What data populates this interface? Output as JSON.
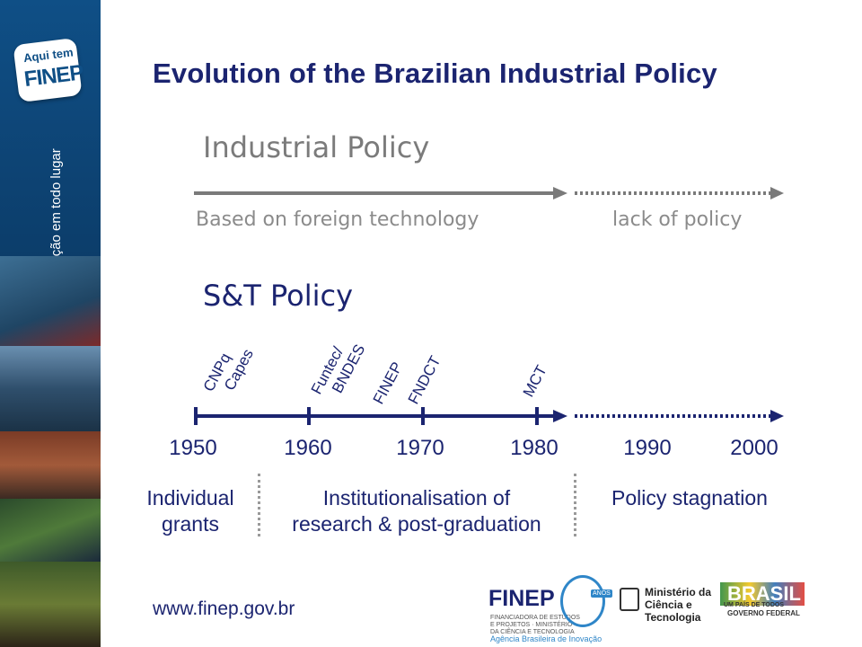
{
  "slide": {
    "title": "Evolution of the Brazilian Industrial Policy",
    "industrial_policy": {
      "heading": "Industrial Policy",
      "segments": [
        "Based on foreign technology",
        "lack of policy"
      ]
    },
    "st_policy": {
      "heading": "S&T Policy",
      "institutions": [
        {
          "text": "CNPq\nCapes",
          "year": 1950
        },
        {
          "text": "Funtec/\nBNDES",
          "year": 1964
        },
        {
          "text": "FINEP",
          "year": 1967
        },
        {
          "text": "FNDCT",
          "year": 1970
        },
        {
          "text": "MCT",
          "year": 1985
        }
      ],
      "years": [
        "1950",
        "1960",
        "1970",
        "1980",
        "1990",
        "2000"
      ],
      "periods": [
        {
          "label": "Individual\ngrants"
        },
        {
          "label": "Institutionalisation of\nresearch & post-graduation"
        },
        {
          "label": "Policy stagnation"
        }
      ]
    }
  },
  "sidebar": {
    "logo_line1": "Aqui tem",
    "logo_line2": "FINEP",
    "tagline": "Inovação em todo lugar"
  },
  "footer": {
    "url": "www.finep.gov.br",
    "finep_name": "FINEP",
    "finep_sub": "FINANCIADORA DE ESTUDOS E PROJETOS · MINISTÉRIO DA CIÊNCIA E TECNOLOGIA",
    "finep_tag": "Agência Brasileira de Inovação",
    "anos_badge": "ANOS",
    "ministry": "Ministério da\nCiência e Tecnologia",
    "brasil_word": "BRASIL",
    "brasil_sub": "UM PAÍS DE TODOS",
    "brasil_gov": "GOVERNO FEDERAL"
  },
  "colors": {
    "navy": "#1b2470",
    "gray_line": "#7a7a7a",
    "sidebar_blue": "#0f4f86"
  }
}
